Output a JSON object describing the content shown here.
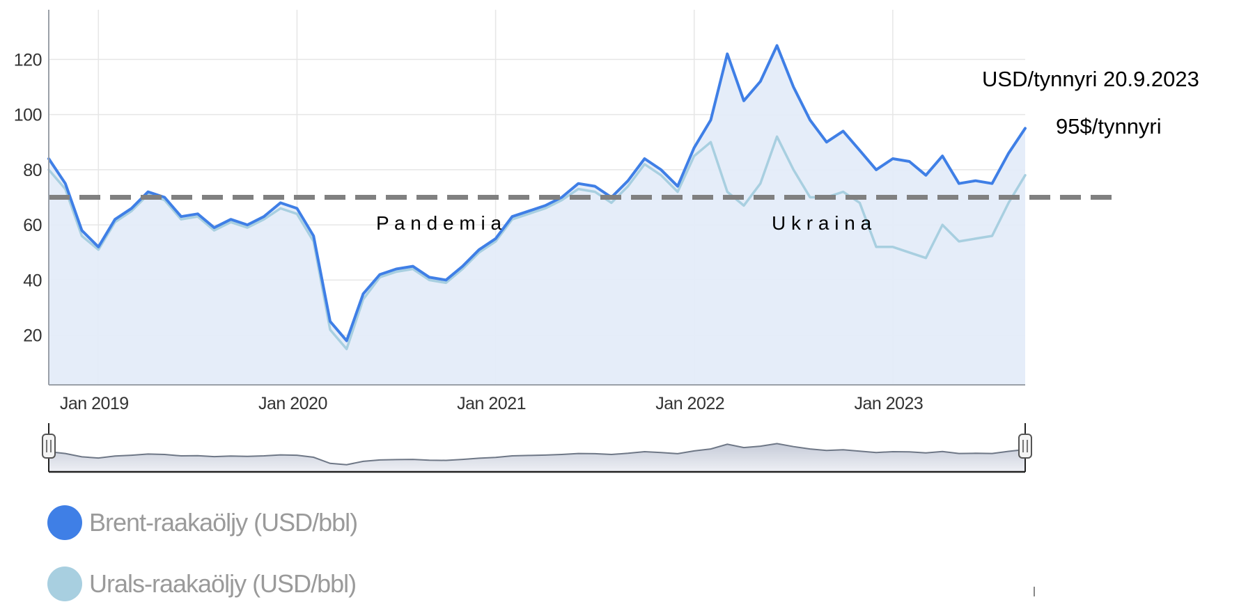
{
  "chart_data": {
    "type": "line",
    "xlabel": "",
    "ylabel": "",
    "x_tick_labels": [
      "Jan 2019",
      "Jan 2020",
      "Jan 2021",
      "Jan 2022",
      "Jan 2023"
    ],
    "y_tick_labels": [
      "20",
      "40",
      "60",
      "80",
      "100",
      "120"
    ],
    "xlim": [
      "2018-10",
      "2023-09"
    ],
    "ylim": [
      2,
      138
    ],
    "reference_line": {
      "value": 70,
      "style": "dashed",
      "color": "#808080"
    },
    "annotations": {
      "unit_date": "USD/tynnyri 20.9.2023",
      "latest_price": "95$/tynnyri",
      "pandemic": "P a n d e m i a",
      "ukraine": "U k r a i n a"
    },
    "series": [
      {
        "name": "Brent-raakaöljy (USD/bbl)",
        "color": "#3f7fe6",
        "x": [
          "2018-10",
          "2018-11",
          "2018-12",
          "2019-01",
          "2019-02",
          "2019-03",
          "2019-04",
          "2019-05",
          "2019-06",
          "2019-07",
          "2019-08",
          "2019-09",
          "2019-10",
          "2019-11",
          "2019-12",
          "2020-01",
          "2020-02",
          "2020-03",
          "2020-04",
          "2020-05",
          "2020-06",
          "2020-07",
          "2020-08",
          "2020-09",
          "2020-10",
          "2020-11",
          "2020-12",
          "2021-01",
          "2021-02",
          "2021-03",
          "2021-04",
          "2021-05",
          "2021-06",
          "2021-07",
          "2021-08",
          "2021-09",
          "2021-10",
          "2021-11",
          "2021-12",
          "2022-01",
          "2022-02",
          "2022-03",
          "2022-04",
          "2022-05",
          "2022-06",
          "2022-07",
          "2022-08",
          "2022-09",
          "2022-10",
          "2022-11",
          "2022-12",
          "2023-01",
          "2023-02",
          "2023-03",
          "2023-04",
          "2023-05",
          "2023-06",
          "2023-07",
          "2023-08",
          "2023-09"
        ],
        "values": [
          84,
          75,
          58,
          52,
          62,
          66,
          72,
          70,
          63,
          64,
          59,
          62,
          60,
          63,
          68,
          66,
          56,
          25,
          18,
          35,
          42,
          44,
          45,
          41,
          40,
          45,
          51,
          55,
          63,
          65,
          67,
          70,
          75,
          74,
          70,
          76,
          84,
          80,
          74,
          88,
          98,
          122,
          105,
          112,
          125,
          110,
          98,
          90,
          94,
          87,
          80,
          84,
          83,
          78,
          85,
          75,
          76,
          75,
          86,
          95
        ]
      },
      {
        "name": "Urals-raakaöljy (USD/bbl)",
        "color": "#a8cfe0",
        "x": [
          "2018-10",
          "2018-11",
          "2018-12",
          "2019-01",
          "2019-02",
          "2019-03",
          "2019-04",
          "2019-05",
          "2019-06",
          "2019-07",
          "2019-08",
          "2019-09",
          "2019-10",
          "2019-11",
          "2019-12",
          "2020-01",
          "2020-02",
          "2020-03",
          "2020-04",
          "2020-05",
          "2020-06",
          "2020-07",
          "2020-08",
          "2020-09",
          "2020-10",
          "2020-11",
          "2020-12",
          "2021-01",
          "2021-02",
          "2021-03",
          "2021-04",
          "2021-05",
          "2021-06",
          "2021-07",
          "2021-08",
          "2021-09",
          "2021-10",
          "2021-11",
          "2021-12",
          "2022-01",
          "2022-02",
          "2022-03",
          "2022-04",
          "2022-05",
          "2022-06",
          "2022-07",
          "2022-08",
          "2022-09",
          "2022-10",
          "2022-11",
          "2022-12",
          "2023-01",
          "2023-02",
          "2023-03",
          "2023-04",
          "2023-05",
          "2023-06",
          "2023-07",
          "2023-08",
          "2023-09"
        ],
        "values": [
          80,
          73,
          56,
          51,
          61,
          65,
          71,
          69,
          62,
          63,
          58,
          61,
          59,
          62,
          66,
          64,
          54,
          22,
          15,
          33,
          41,
          43,
          44,
          40,
          39,
          44,
          50,
          54,
          62,
          64,
          66,
          69,
          73,
          72,
          68,
          74,
          82,
          78,
          72,
          85,
          90,
          72,
          67,
          75,
          92,
          80,
          70,
          70,
          72,
          68,
          52,
          52,
          50,
          48,
          60,
          54,
          55,
          56,
          68,
          78
        ]
      }
    ]
  },
  "navigator": {
    "handle_icon": "grip-icon"
  }
}
